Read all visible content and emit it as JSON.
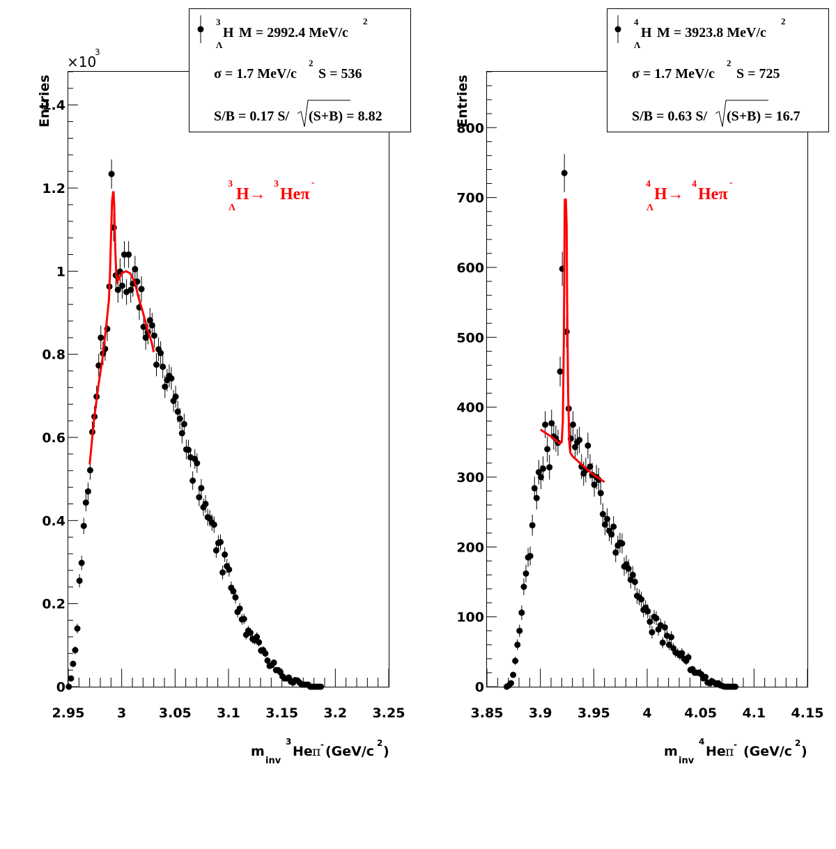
{
  "chart_data": [
    {
      "type": "scatter",
      "xlabel": "m_inv ³Heπ⁻ (GeV/c²)",
      "xlabel_parts": {
        "m": "m",
        "inv": "inv",
        "sup3": "3",
        "he": "He",
        "pi": "π",
        "minus": "-",
        "gev": "(GeV/c",
        "two": "2",
        "close": ")"
      },
      "ylabel": "Entries",
      "yexponent": "×10",
      "yexponent_power": "3",
      "xlim": [
        2.95,
        3.25
      ],
      "ylim": [
        0,
        1.48
      ],
      "x_ticks": [
        "2.95",
        "3",
        "3.05",
        "3.1",
        "3.15",
        "3.2",
        "3.25"
      ],
      "x_tick_values": [
        2.95,
        3.0,
        3.05,
        3.1,
        3.15,
        3.2,
        3.25
      ],
      "y_ticks": [
        "0",
        "0.2",
        "0.4",
        "0.6",
        "0.8",
        "1",
        "1.2",
        "1.4"
      ],
      "y_tick_values": [
        0,
        0.2,
        0.4,
        0.6,
        0.8,
        1.0,
        1.2,
        1.4
      ],
      "legend": {
        "mass_label": "M = 2992.4 MeV/c",
        "nucleus": "H",
        "nucleus_sup": "3",
        "nucleus_sub": "Λ",
        "sigma_label": "σ = 1.7 MeV/c",
        "sig_label": "S =  536",
        "sb_label": "S/B = 0.17  S/",
        "signif_label": "(S+B) = 8.82",
        "sup2": "2"
      },
      "reaction": {
        "lead_sup": "3",
        "lead": "H→",
        "lead_sub": "Λ",
        "prod_sup": "3",
        "prod": "Heπ",
        "prod_minus": "-"
      },
      "points": [
        [
          2.9505,
          0.0
        ],
        [
          2.9525,
          0.02
        ],
        [
          2.9545,
          0.055
        ],
        [
          2.9565,
          0.088
        ],
        [
          2.9585,
          0.14
        ],
        [
          2.9605,
          0.255
        ],
        [
          2.9625,
          0.298
        ],
        [
          2.9645,
          0.387
        ],
        [
          2.9665,
          0.443
        ],
        [
          2.9685,
          0.47
        ],
        [
          2.9705,
          0.521
        ],
        [
          2.9725,
          0.613
        ],
        [
          2.9745,
          0.65
        ],
        [
          2.9765,
          0.698
        ],
        [
          2.9785,
          0.773
        ],
        [
          2.9805,
          0.84
        ],
        [
          2.9825,
          0.802
        ],
        [
          2.9845,
          0.813
        ],
        [
          2.9865,
          0.861
        ],
        [
          2.9885,
          0.963
        ],
        [
          2.9905,
          1.234
        ],
        [
          2.9925,
          1.105
        ],
        [
          2.9945,
          0.99
        ],
        [
          2.9965,
          0.955
        ],
        [
          2.9985,
          0.999
        ],
        [
          3.0005,
          0.965
        ],
        [
          3.0025,
          1.04
        ],
        [
          3.0045,
          0.95
        ],
        [
          3.0065,
          1.04
        ],
        [
          3.0085,
          0.955
        ],
        [
          3.0105,
          0.97
        ],
        [
          3.0125,
          1.005
        ],
        [
          3.0145,
          0.975
        ],
        [
          3.0165,
          0.913
        ],
        [
          3.0185,
          0.957
        ],
        [
          3.0205,
          0.866
        ],
        [
          3.0225,
          0.84
        ],
        [
          3.0245,
          0.853
        ],
        [
          3.0265,
          0.882
        ],
        [
          3.0285,
          0.87
        ],
        [
          3.0305,
          0.845
        ],
        [
          3.0325,
          0.775
        ],
        [
          3.0345,
          0.812
        ],
        [
          3.0365,
          0.803
        ],
        [
          3.0385,
          0.77
        ],
        [
          3.0405,
          0.722
        ],
        [
          3.0425,
          0.738
        ],
        [
          3.0445,
          0.748
        ],
        [
          3.0465,
          0.742
        ],
        [
          3.0485,
          0.688
        ],
        [
          3.0505,
          0.698
        ],
        [
          3.0525,
          0.662
        ],
        [
          3.0545,
          0.645
        ],
        [
          3.0565,
          0.61
        ],
        [
          3.0585,
          0.632
        ],
        [
          3.0605,
          0.571
        ],
        [
          3.0625,
          0.57
        ],
        [
          3.0645,
          0.552
        ],
        [
          3.0665,
          0.496
        ],
        [
          3.0685,
          0.548
        ],
        [
          3.0705,
          0.538
        ],
        [
          3.0725,
          0.456
        ],
        [
          3.0745,
          0.478
        ],
        [
          3.0765,
          0.432
        ],
        [
          3.0785,
          0.44
        ],
        [
          3.0805,
          0.408
        ],
        [
          3.0825,
          0.405
        ],
        [
          3.0845,
          0.395
        ],
        [
          3.0865,
          0.39
        ],
        [
          3.0885,
          0.328
        ],
        [
          3.0905,
          0.346
        ],
        [
          3.0925,
          0.348
        ],
        [
          3.0945,
          0.275
        ],
        [
          3.0965,
          0.318
        ],
        [
          3.0985,
          0.29
        ],
        [
          3.1005,
          0.282
        ],
        [
          3.1025,
          0.238
        ],
        [
          3.1045,
          0.23
        ],
        [
          3.1065,
          0.215
        ],
        [
          3.1085,
          0.18
        ],
        [
          3.1105,
          0.188
        ],
        [
          3.1125,
          0.162
        ],
        [
          3.1145,
          0.163
        ],
        [
          3.1165,
          0.125
        ],
        [
          3.1185,
          0.135
        ],
        [
          3.1205,
          0.13
        ],
        [
          3.1225,
          0.115
        ],
        [
          3.1245,
          0.112
        ],
        [
          3.1265,
          0.12
        ],
        [
          3.1285,
          0.107
        ],
        [
          3.1305,
          0.087
        ],
        [
          3.1325,
          0.088
        ],
        [
          3.1345,
          0.08
        ],
        [
          3.1365,
          0.063
        ],
        [
          3.1385,
          0.05
        ],
        [
          3.1405,
          0.052
        ],
        [
          3.1425,
          0.058
        ],
        [
          3.1445,
          0.04
        ],
        [
          3.1465,
          0.04
        ],
        [
          3.1485,
          0.035
        ],
        [
          3.1505,
          0.025
        ],
        [
          3.1525,
          0.02
        ],
        [
          3.1545,
          0.02
        ],
        [
          3.1565,
          0.022
        ],
        [
          3.1585,
          0.012
        ],
        [
          3.1605,
          0.01
        ],
        [
          3.1625,
          0.016
        ],
        [
          3.1645,
          0.015
        ],
        [
          3.1665,
          0.01
        ],
        [
          3.1685,
          0.005
        ],
        [
          3.1705,
          0.005
        ],
        [
          3.1725,
          0.005
        ],
        [
          3.1745,
          0.005
        ],
        [
          3.1765,
          0.0
        ],
        [
          3.1785,
          0.0
        ],
        [
          3.1805,
          0.0
        ],
        [
          3.1825,
          0.0
        ],
        [
          3.1845,
          0.0
        ],
        [
          3.1865,
          0.0
        ]
      ],
      "fit": {
        "color": "#ff0000",
        "x": [
          2.97,
          2.974,
          2.978,
          2.982,
          2.986,
          2.988,
          2.989,
          2.99,
          2.991,
          2.992,
          2.9924,
          2.993,
          2.994,
          2.995,
          2.996,
          2.998,
          3.0,
          3.004,
          3.008,
          3.012,
          3.016,
          3.02,
          3.024,
          3.028,
          3.03
        ],
        "y": [
          0.535,
          0.64,
          0.72,
          0.79,
          0.88,
          0.93,
          0.99,
          1.08,
          1.17,
          1.19,
          1.19,
          1.16,
          1.05,
          0.99,
          0.975,
          0.985,
          0.995,
          1.0,
          0.995,
          0.975,
          0.935,
          0.9,
          0.86,
          0.83,
          0.805
        ]
      },
      "marker_color": "#000000"
    },
    {
      "type": "scatter",
      "xlabel": "m_inv ⁴Heπ⁻ (GeV/c²)",
      "xlabel_parts": {
        "m": "m",
        "inv": "inv",
        "sup3": "4",
        "he": "He",
        "pi": "π",
        "minus": "-",
        "gev": "(GeV/c",
        "two": "2",
        "close": ")"
      },
      "ylabel": "Entries",
      "xlim": [
        3.85,
        4.15
      ],
      "ylim": [
        0,
        880
      ],
      "x_ticks": [
        "3.85",
        "3.9",
        "3.95",
        "4",
        "4.05",
        "4.1",
        "4.15"
      ],
      "x_tick_values": [
        3.85,
        3.9,
        3.95,
        4.0,
        4.05,
        4.1,
        4.15
      ],
      "y_ticks": [
        "0",
        "100",
        "200",
        "300",
        "400",
        "500",
        "600",
        "700",
        "800"
      ],
      "y_tick_values": [
        0,
        100,
        200,
        300,
        400,
        500,
        600,
        700,
        800
      ],
      "legend": {
        "mass_label": "M = 3923.8 MeV/c",
        "nucleus": "H",
        "nucleus_sup": "4",
        "nucleus_sub": "Λ",
        "sigma_label": "σ = 1.7 MeV/c",
        "sig_label": "S =  725",
        "sb_label": "S/B = 0.63  S/",
        "signif_label": "(S+B) = 16.7",
        "sup2": "2"
      },
      "reaction": {
        "lead_sup": "4",
        "lead": "H→",
        "lead_sub": "Λ",
        "prod_sup": "4",
        "prod": "Heπ",
        "prod_minus": "-"
      },
      "points": [
        [
          3.8685,
          0
        ],
        [
          3.8705,
          2
        ],
        [
          3.8725,
          5
        ],
        [
          3.8745,
          17
        ],
        [
          3.8765,
          37
        ],
        [
          3.8785,
          60
        ],
        [
          3.8805,
          80
        ],
        [
          3.8825,
          106
        ],
        [
          3.8845,
          143
        ],
        [
          3.8865,
          162
        ],
        [
          3.8885,
          185
        ],
        [
          3.8905,
          187
        ],
        [
          3.8925,
          231
        ],
        [
          3.8945,
          284
        ],
        [
          3.8965,
          270
        ],
        [
          3.8985,
          307
        ],
        [
          3.9005,
          300
        ],
        [
          3.9025,
          312
        ],
        [
          3.9045,
          375
        ],
        [
          3.9065,
          340
        ],
        [
          3.9085,
          314
        ],
        [
          3.9105,
          377
        ],
        [
          3.9125,
          358
        ],
        [
          3.9145,
          355
        ],
        [
          3.9165,
          349
        ],
        [
          3.9185,
          451
        ],
        [
          3.9205,
          598
        ],
        [
          3.9225,
          735
        ],
        [
          3.9245,
          508
        ],
        [
          3.9265,
          398
        ],
        [
          3.9285,
          355
        ],
        [
          3.9305,
          375
        ],
        [
          3.9325,
          343
        ],
        [
          3.9345,
          350
        ],
        [
          3.9365,
          353
        ],
        [
          3.9385,
          315
        ],
        [
          3.9405,
          305
        ],
        [
          3.9425,
          310
        ],
        [
          3.9445,
          345
        ],
        [
          3.9465,
          315
        ],
        [
          3.9485,
          303
        ],
        [
          3.9505,
          289
        ],
        [
          3.9525,
          300
        ],
        [
          3.9545,
          296
        ],
        [
          3.9565,
          277
        ],
        [
          3.9585,
          247
        ],
        [
          3.9605,
          232
        ],
        [
          3.9625,
          240
        ],
        [
          3.9645,
          223
        ],
        [
          3.9665,
          218
        ],
        [
          3.9685,
          229
        ],
        [
          3.9705,
          192
        ],
        [
          3.9725,
          202
        ],
        [
          3.9745,
          206
        ],
        [
          3.9765,
          205
        ],
        [
          3.9785,
          172
        ],
        [
          3.9805,
          175
        ],
        [
          3.9825,
          169
        ],
        [
          3.9845,
          153
        ],
        [
          3.9865,
          160
        ],
        [
          3.9885,
          150
        ],
        [
          3.9905,
          130
        ],
        [
          3.9925,
          128
        ],
        [
          3.9945,
          125
        ],
        [
          3.9965,
          110
        ],
        [
          3.9985,
          113
        ],
        [
          4.0005,
          108
        ],
        [
          4.0025,
          93
        ],
        [
          4.0045,
          78
        ],
        [
          4.0065,
          100
        ],
        [
          4.0085,
          98
        ],
        [
          4.0105,
          82
        ],
        [
          4.0125,
          88
        ],
        [
          4.0145,
          63
        ],
        [
          4.0165,
          85
        ],
        [
          4.0185,
          73
        ],
        [
          4.0205,
          60
        ],
        [
          4.0225,
          71
        ],
        [
          4.0245,
          55
        ],
        [
          4.0265,
          49
        ],
        [
          4.0285,
          48
        ],
        [
          4.0305,
          45
        ],
        [
          4.0325,
          48
        ],
        [
          4.0345,
          40
        ],
        [
          4.0365,
          37
        ],
        [
          4.0385,
          42
        ],
        [
          4.0405,
          24
        ],
        [
          4.0425,
          25
        ],
        [
          4.0445,
          20
        ],
        [
          4.0465,
          20
        ],
        [
          4.0485,
          20
        ],
        [
          4.0505,
          18
        ],
        [
          4.0525,
          12
        ],
        [
          4.0545,
          14
        ],
        [
          4.0565,
          6
        ],
        [
          4.0585,
          5
        ],
        [
          4.0605,
          8
        ],
        [
          4.0625,
          6
        ],
        [
          4.0645,
          4
        ],
        [
          4.0665,
          5
        ],
        [
          4.0685,
          2
        ],
        [
          4.0705,
          1
        ],
        [
          4.0725,
          0
        ],
        [
          4.0745,
          0
        ],
        [
          4.0765,
          0
        ],
        [
          4.0785,
          0
        ],
        [
          4.0805,
          0
        ],
        [
          4.0825,
          0
        ]
      ],
      "fit": {
        "color": "#ff0000",
        "x": [
          3.9,
          3.905,
          3.91,
          3.915,
          3.918,
          3.92,
          3.921,
          3.922,
          3.9228,
          3.923,
          3.9238,
          3.9246,
          3.925,
          3.926,
          3.927,
          3.928,
          3.93,
          3.935,
          3.94,
          3.945,
          3.95,
          3.955,
          3.96
        ],
        "y": [
          368,
          363,
          358,
          352,
          348,
          350,
          380,
          500,
          690,
          697,
          697,
          660,
          560,
          420,
          350,
          335,
          330,
          323,
          316,
          309,
          303,
          298,
          293
        ]
      },
      "marker_color": "#000000"
    }
  ]
}
